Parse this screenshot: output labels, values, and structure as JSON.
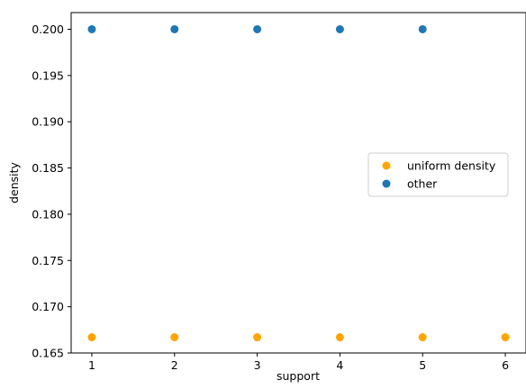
{
  "chart_data": {
    "type": "scatter",
    "title": "",
    "xlabel": "support",
    "ylabel": "density",
    "xlim": [
      0.75,
      6.25
    ],
    "ylim": [
      0.165,
      0.2018
    ],
    "xticks": [
      1,
      2,
      3,
      4,
      5,
      6
    ],
    "yticks": [
      0.165,
      0.17,
      0.175,
      0.18,
      0.185,
      0.19,
      0.195,
      0.2
    ],
    "ytick_labels": [
      "0.165",
      "0.170",
      "0.175",
      "0.180",
      "0.185",
      "0.190",
      "0.195",
      "0.200"
    ],
    "grid": false,
    "legend_position": "center-right",
    "series": [
      {
        "name": "uniform density",
        "color": "#ffa500",
        "x": [
          1,
          2,
          3,
          4,
          5,
          6
        ],
        "y": [
          0.1667,
          0.1667,
          0.1667,
          0.1667,
          0.1667,
          0.1667
        ]
      },
      {
        "name": "other",
        "color": "#1f77b4",
        "x": [
          1,
          2,
          3,
          4,
          5
        ],
        "y": [
          0.2,
          0.2,
          0.2,
          0.2,
          0.2
        ]
      }
    ]
  }
}
